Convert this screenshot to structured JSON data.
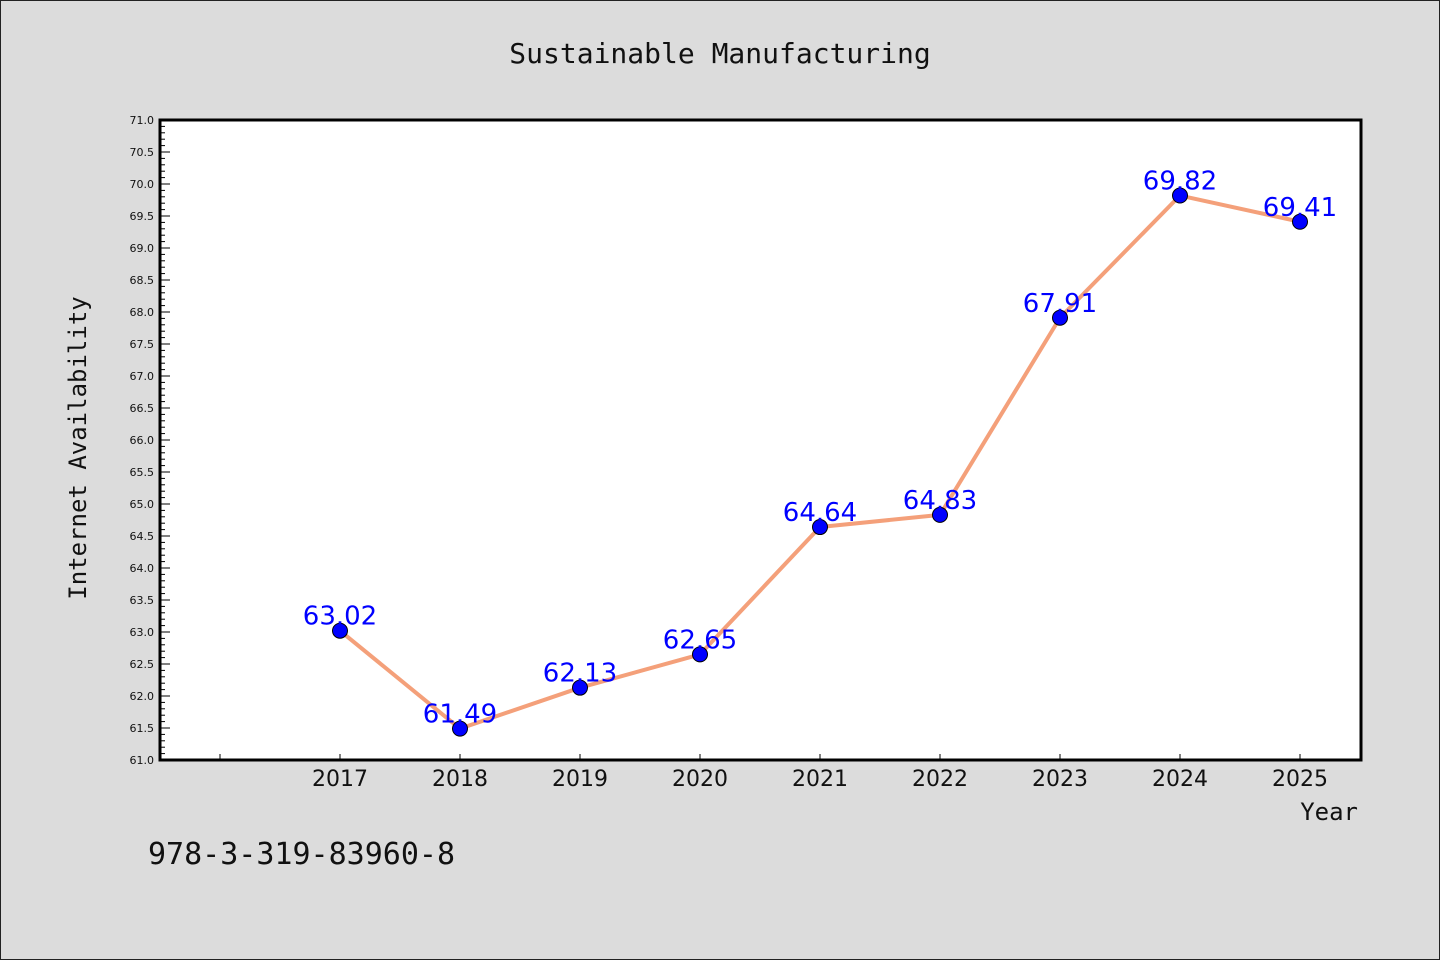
{
  "chart_data": {
    "type": "line",
    "title": "Sustainable Manufacturing",
    "xlabel": "Year",
    "ylabel": "Internet Availability",
    "categories": [
      "2017",
      "2018",
      "2019",
      "2020",
      "2021",
      "2022",
      "2023",
      "2024",
      "2025"
    ],
    "series": [
      {
        "values": [
          63.02,
          61.49,
          62.13,
          62.65,
          64.64,
          64.83,
          67.91,
          69.82,
          69.41
        ],
        "labels": [
          "63.02",
          "61.49",
          "62.13",
          "62.65",
          "64.64",
          "64.83",
          "67.91",
          "69.82",
          "69.41"
        ]
      }
    ],
    "ylim": [
      61.0,
      71.0
    ],
    "y_ticks": [
      "61.0",
      "61.5",
      "62.0",
      "62.5",
      "63.0",
      "63.5",
      "64.0",
      "64.5",
      "65.0",
      "65.5",
      "66.0",
      "66.5",
      "67.0",
      "67.5",
      "68.0",
      "68.5",
      "69.0",
      "69.5",
      "70.0",
      "70.5",
      "71.0"
    ],
    "grid": false,
    "line_color": "#f4a07a",
    "marker_color": "#0000ff",
    "label_color": "#0000ff",
    "background_color": "#dcdcdc",
    "plot_background_color": "#ffffff"
  },
  "footer_text": "978-3-319-83960-8"
}
